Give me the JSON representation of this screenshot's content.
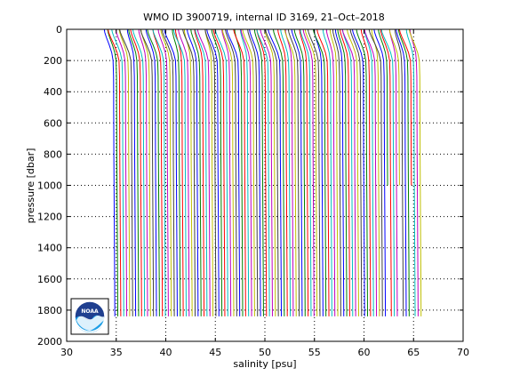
{
  "chart_data": {
    "type": "line",
    "title": "WMO ID 3900719, internal ID 3169, 21–Oct–2018",
    "xlabel": "salinity [psu]",
    "ylabel": "pressure [dbar]",
    "xlim": [
      30,
      70
    ],
    "ylim": [
      0,
      2000
    ],
    "y_reversed": true,
    "grid": true,
    "grid_style": "dotted",
    "x_ticks": [
      30,
      35,
      40,
      45,
      50,
      55,
      60,
      65,
      70
    ],
    "y_ticks": [
      0,
      200,
      400,
      600,
      800,
      1000,
      1200,
      1400,
      1600,
      1800,
      2000
    ],
    "description_of_series": "Many stacked salinity profiles, each offset successively by about 0.3 psu",
    "profile_count": 104,
    "profile_offset_psu": 0.3,
    "base_salinity_psu": 33.8,
    "base_profile": {
      "pressure": [
        0,
        20,
        50,
        100,
        150,
        200,
        300,
        400,
        500,
        600,
        800,
        1000,
        1200,
        1400,
        1600,
        1840
      ],
      "salinity": [
        33.8,
        33.85,
        34.0,
        34.3,
        34.55,
        34.68,
        34.73,
        34.74,
        34.74,
        34.75,
        34.76,
        34.78,
        34.8,
        34.82,
        34.84,
        34.86
      ]
    },
    "line_colors": [
      "#0000ff",
      "#008000",
      "#ff0000",
      "#00bfbf",
      "#bf00bf",
      "#bfbf00",
      "#404040"
    ],
    "logo_text": "NOAA"
  }
}
